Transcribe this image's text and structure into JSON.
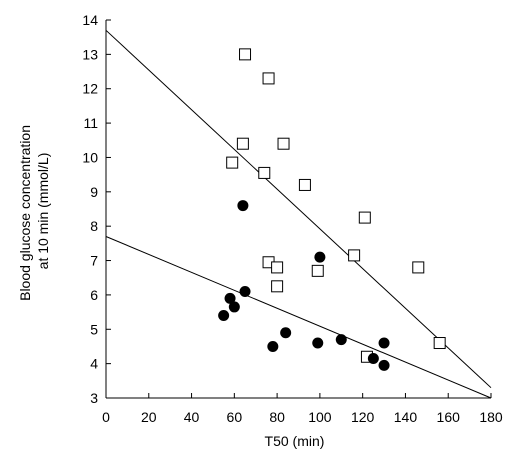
{
  "chart_data": {
    "type": "scatter",
    "title": "",
    "xlabel": "T50 (min)",
    "ylabel_lines": [
      "Blood glucose concentration",
      "at 10 min (mmol/L)"
    ],
    "xlim": [
      0,
      180
    ],
    "ylim": [
      3,
      14
    ],
    "xticks": [
      0,
      20,
      40,
      60,
      80,
      100,
      120,
      140,
      160,
      180
    ],
    "yticks": [
      3,
      4,
      5,
      6,
      7,
      8,
      9,
      10,
      11,
      12,
      13,
      14
    ],
    "grid": false,
    "legend": "none",
    "series": [
      {
        "marker": "open-square",
        "color": "#000000",
        "points": [
          [
            65,
            13.0
          ],
          [
            76,
            12.3
          ],
          [
            64,
            10.4
          ],
          [
            83,
            10.4
          ],
          [
            59,
            9.85
          ],
          [
            74,
            9.55
          ],
          [
            93,
            9.2
          ],
          [
            121,
            8.25
          ],
          [
            76,
            6.95
          ],
          [
            116,
            7.15
          ],
          [
            80,
            6.8
          ],
          [
            99,
            6.7
          ],
          [
            146,
            6.8
          ],
          [
            80,
            6.25
          ],
          [
            122,
            4.2
          ],
          [
            156,
            4.6
          ]
        ],
        "fit_line": [
          [
            0,
            13.7
          ],
          [
            180,
            3.3
          ]
        ]
      },
      {
        "marker": "filled-circle",
        "color": "#000000",
        "points": [
          [
            64,
            8.6
          ],
          [
            100,
            7.1
          ],
          [
            65,
            6.1
          ],
          [
            58,
            5.9
          ],
          [
            60,
            5.65
          ],
          [
            55,
            5.4
          ],
          [
            84,
            4.9
          ],
          [
            110,
            4.7
          ],
          [
            78,
            4.5
          ],
          [
            99,
            4.6
          ],
          [
            125,
            4.15
          ],
          [
            130,
            4.6
          ],
          [
            130,
            3.95
          ]
        ],
        "fit_line": [
          [
            0,
            7.7
          ],
          [
            180,
            3.0
          ]
        ]
      }
    ]
  }
}
